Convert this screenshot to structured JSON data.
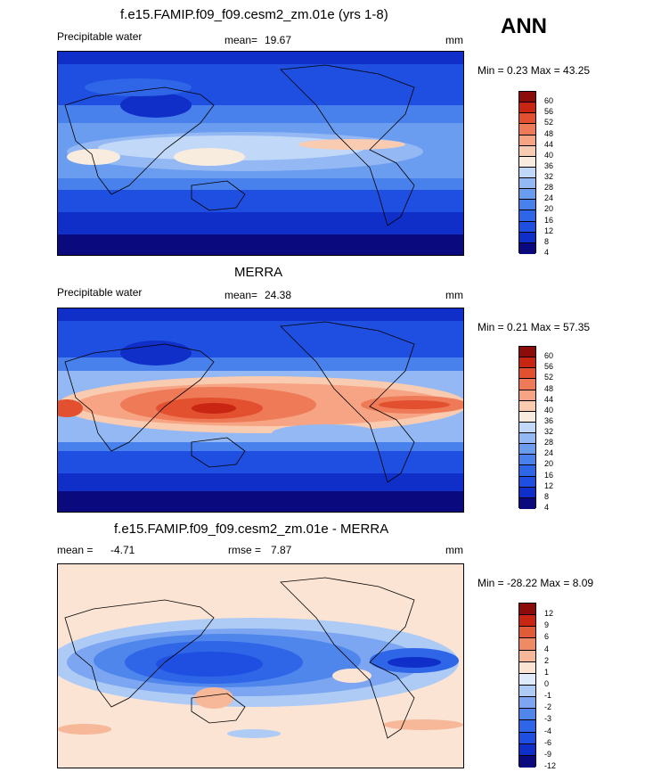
{
  "header": {
    "run_title": "f.e15.FAMIP.f09_f09.cesm2_zm.01e (yrs 1-8)",
    "season": "ANN"
  },
  "panels": [
    {
      "title": "",
      "variable": "Precipitable water",
      "stat_label": "mean=",
      "stat_value": "19.67",
      "units": "mm",
      "minmax_label": "Min =   0.23 Max =  43.25",
      "colorbar_ticks": [
        "60",
        "56",
        "52",
        "48",
        "44",
        "40",
        "36",
        "32",
        "28",
        "24",
        "20",
        "16",
        "12",
        "8",
        "4"
      ]
    },
    {
      "title": "MERRA",
      "variable": "Precipitable water",
      "stat_label": "mean=",
      "stat_value": "24.38",
      "units": "mm",
      "minmax_label": "Min =   0.21 Max =  57.35",
      "colorbar_ticks": [
        "60",
        "56",
        "52",
        "48",
        "44",
        "40",
        "36",
        "32",
        "28",
        "24",
        "20",
        "16",
        "12",
        "8",
        "4"
      ]
    },
    {
      "title": "f.e15.FAMIP.f09_f09.cesm2_zm.01e - MERRA",
      "variable": "",
      "stat_label": "mean =",
      "stat_value": "-4.71",
      "stat2_label": "rmse =",
      "stat2_value": "7.87",
      "units": "mm",
      "minmax_label": "Min = -28.22 Max =   8.09",
      "colorbar_ticks": [
        "12",
        "9",
        "6",
        "4",
        "2",
        "1",
        "0",
        "-1",
        "-2",
        "-3",
        "-4",
        "-6",
        "-9",
        "-12"
      ]
    }
  ],
  "colors": {
    "abs_scale": [
      "#0a0a7e",
      "#0f2fc8",
      "#1e4fe0",
      "#2f66e8",
      "#4880ec",
      "#6a9cf0",
      "#93b8f3",
      "#c1d8f8",
      "#f8ecdf",
      "#f9cbb0",
      "#f6a483",
      "#ee7a58",
      "#e2502f",
      "#c82612",
      "#8c0b0b"
    ],
    "diff_scale": [
      "#0a0a7e",
      "#0f2fc8",
      "#1e4fe0",
      "#2f66e8",
      "#4f86ec",
      "#7ca6f1",
      "#aecbf6",
      "#dfeafb",
      "#fbe4d4",
      "#f6b898",
      "#ee8a66",
      "#e25b38",
      "#c82612",
      "#8c0b0b"
    ]
  }
}
